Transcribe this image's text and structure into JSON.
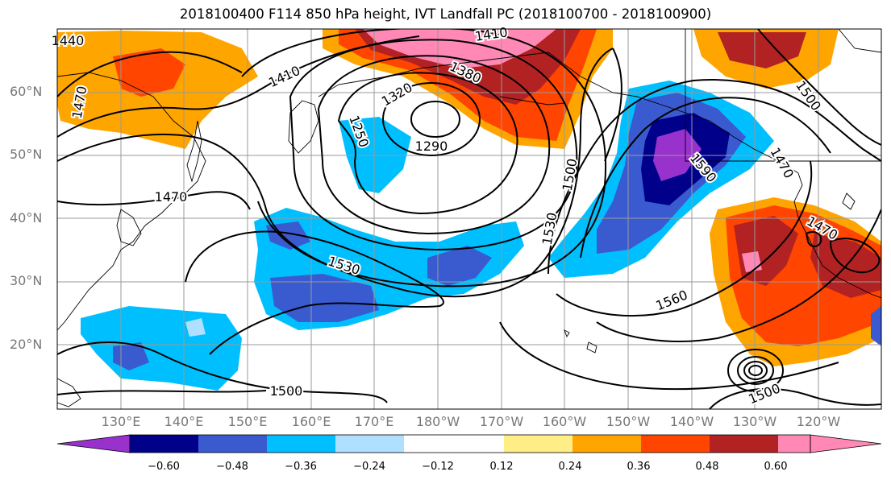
{
  "title": "2018100400 F114 850 hPa height, IVT Landfall PC (2018100700 - 2018100900)",
  "lat_labels": [
    "60°N",
    "50°N",
    "40°N",
    "30°N",
    "20°N"
  ],
  "lon_labels": [
    "130°E",
    "140°E",
    "150°E",
    "160°E",
    "170°E",
    "180°W",
    "170°W",
    "160°W",
    "150°W",
    "140°W",
    "130°W",
    "120°W"
  ],
  "contour_labels": [
    "1410",
    "1380",
    "1410",
    "1320",
    "1250",
    "1290",
    "1470",
    "1470",
    "1530",
    "1500",
    "1530",
    "1500",
    "1560",
    "1500",
    "1590",
    "1470",
    "1500",
    "1470",
    "1440"
  ],
  "colorbar": {
    "tick_labels": [
      "−0.60",
      "−0.48",
      "−0.36",
      "−0.24",
      "−0.12",
      "0.12",
      "0.24",
      "0.36",
      "0.48",
      "0.60"
    ],
    "colors": [
      "#9932cc",
      "#00008b",
      "#3a5bd0",
      "#00bfff",
      "#b0e0ff",
      "#ffffff",
      "#ffed85",
      "#ffa500",
      "#ff4500",
      "#b22222",
      "#ff88b4"
    ]
  },
  "palette": {
    "neg_strong": "#9932cc",
    "neg_dark": "#00008b",
    "neg_mid": "#3a5bd0",
    "neg_light": "#00bfff",
    "neg_pale": "#b0e0ff",
    "pos_pale": "#ffed85",
    "pos_light": "#ffa500",
    "pos_mid": "#ff4500",
    "pos_dark": "#b22222",
    "pos_strong": "#ff88b4"
  }
}
